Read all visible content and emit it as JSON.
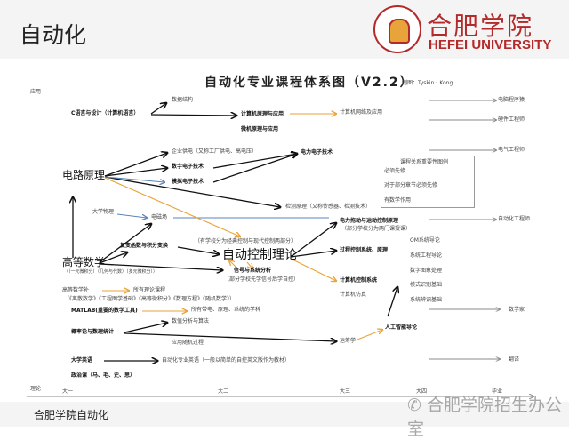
{
  "header": {
    "title": "自动化",
    "logo_cn": "合肥学院",
    "logo_en": "HEFEI UNIVERSITY"
  },
  "diagram": {
    "title": "自动化专业课程体系图（V2.2）",
    "author": "制图：Tyskin・Kong",
    "axis": {
      "top": "应用",
      "bottom": "理论",
      "years": [
        "大一",
        "大二",
        "大三",
        "大四",
        "毕业"
      ]
    },
    "nodes": {
      "c_lang": "C语言与设计（计算机语言）",
      "data_struct": "数据结构",
      "comp_principle": "计算机原理与应用",
      "micro": "微机原理与应用",
      "network": "计算机网络及应用",
      "power_supply": "企业供电（又称工厂供电、高电压）",
      "digital": "数字电子技术",
      "analog": "模拟电子技术",
      "power_elec": "电力电子技术",
      "circuit": "电路原理",
      "detection": "检测原理（又称传感器、检测技术）",
      "physics": "大学物理",
      "em_field": "电磁场",
      "drive": "电力拖动与运动控制原理",
      "drive_note": "（部分学校分为两门课授课）",
      "complex": "复变函数与积分变换",
      "control_note": "（有学校分为经典控制与现代控制两部分）",
      "control": "自动控制理论",
      "math": "高等数学",
      "math_note": "（（一元微积分）（几何与代数）（多元微积分））",
      "signal": "信号与系统分析",
      "signal_note": "（部分学校先学信号后学自控）",
      "process": "过程控制系统、原理",
      "comp_control": "计算机控制系统",
      "simulation": "计算机仿真",
      "om": "OM系统导论",
      "sys_eng": "系统工程导论",
      "image": "数字图象处理",
      "pattern": "模式识别基础",
      "ident": "系统辨识基础",
      "math_extra": "高等数学补",
      "all_theory": "所有理论课程",
      "math_extra_list": "（《离散数学》《工程图学基础》《高等微积分》《数理方程》《随机数学》）",
      "matlab": "MATLAB(重要的数学工具)",
      "all_elec": "所有带电、原理、系统的学科",
      "numeric": "数值分析与算法",
      "prob": "概率论与数理统计",
      "stoch": "应用随机过程",
      "or": "运筹学",
      "ai": "人工智能导论",
      "english": "大学英语",
      "prof_english": "自动化专业英语（一般以简单的自控英文版作为教材）",
      "politics": "政治课（马、毛、史、思）"
    },
    "careers": [
      "电脑程序猿",
      "硬件工程师",
      "电气工程师",
      "自动化工程师",
      "数学家",
      "翻译"
    ],
    "legend": {
      "title": "课程关系重要性图例",
      "items": [
        {
          "label": "必须先修",
          "color": "#111111"
        },
        {
          "label": "对于部分章节必须先修",
          "color": "#5b85b8"
        },
        {
          "label": "有数学作用",
          "color": "#e8a33a"
        }
      ]
    }
  },
  "footer": {
    "text": "合肥学院自动化",
    "watermark": "合肥学院招生办公室"
  }
}
